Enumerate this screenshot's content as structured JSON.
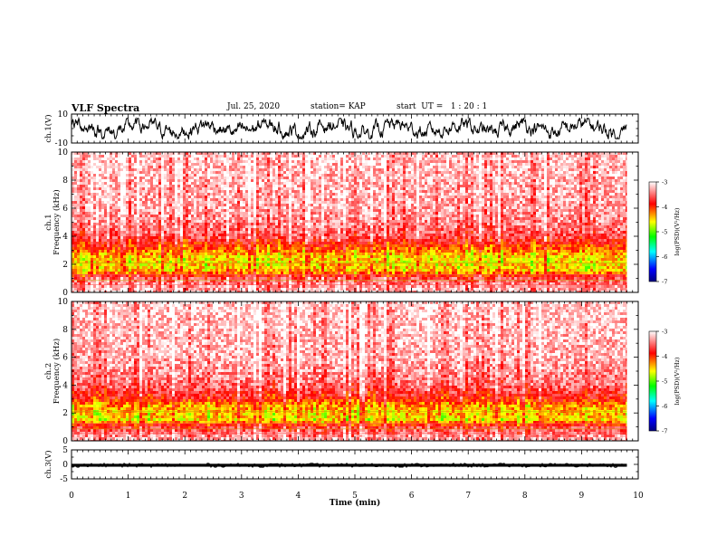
{
  "header": {
    "title": "VLF Spectra",
    "date": "Jul. 25, 2020",
    "station": "station= KAP",
    "start_ut": "start  UT =   1 : 20 : 1"
  },
  "chart_data": [
    {
      "type": "line",
      "panel": "ch1-waveform",
      "ylabel": "ch.1(V)",
      "ylim": [
        -10,
        10
      ],
      "yticks": [
        "10",
        "-10"
      ],
      "xlim": [
        0,
        10
      ],
      "description_values": {
        "approx_amplitude_range": [
          -7,
          7
        ]
      }
    },
    {
      "type": "heatmap",
      "panel": "ch1-spectrogram",
      "ylabel": "ch.1\nFrequency  (kHz)",
      "ylim": [
        0,
        10
      ],
      "yticks": [
        "0",
        "2",
        "4",
        "6",
        "8",
        "10"
      ],
      "xlim": [
        0,
        9.8
      ],
      "profile": {
        "freq_khz": [
          0,
          1,
          1.5,
          2,
          2.5,
          3,
          3.5,
          4,
          5,
          6,
          8,
          10
        ],
        "log_psd": [
          -3.2,
          -3.6,
          -4.4,
          -4.5,
          -4.5,
          -4.2,
          -3.9,
          -3.6,
          -3.4,
          -3.3,
          -3.25,
          -3.2
        ]
      },
      "colorbar": {
        "label": "log(PSD)(V²/Hz)",
        "ticks": [
          "-3",
          "-4",
          "-5",
          "-6",
          "-7"
        ],
        "range": [
          -7,
          -3
        ]
      }
    },
    {
      "type": "heatmap",
      "panel": "ch2-spectrogram",
      "ylabel": "ch.2\nFrequency  (kHz)",
      "ylim": [
        0,
        10
      ],
      "yticks": [
        "0",
        "2",
        "4",
        "6",
        "8",
        "10"
      ],
      "xlim": [
        0,
        9.8
      ],
      "profile": {
        "freq_khz": [
          0,
          1,
          1.5,
          2,
          2.5,
          3,
          3.5,
          4,
          5,
          6,
          8,
          10
        ],
        "log_psd": [
          -3.2,
          -3.7,
          -4.5,
          -4.4,
          -4.3,
          -3.9,
          -3.7,
          -3.5,
          -3.35,
          -3.25,
          -3.2,
          -3.15
        ]
      },
      "colorbar": {
        "label": "log(PSD)(V²/Hz)",
        "ticks": [
          "-3",
          "-4",
          "-5",
          "-6",
          "-7"
        ],
        "range": [
          -7,
          -3
        ]
      }
    },
    {
      "type": "line",
      "panel": "ch3-waveform",
      "ylabel": "ch.3(V)",
      "ylim": [
        -5,
        5
      ],
      "yticks": [
        "5",
        "0",
        "-5"
      ],
      "xlim": [
        0,
        10
      ],
      "description_values": {
        "approx_level": -0.3,
        "approx_amplitude_range": [
          -0.8,
          0.2
        ]
      }
    }
  ],
  "x_axis": {
    "label": "Time  (min)",
    "ticks": [
      "0",
      "1",
      "2",
      "3",
      "4",
      "5",
      "6",
      "7",
      "8",
      "9",
      "10"
    ],
    "range": [
      0,
      10
    ]
  }
}
